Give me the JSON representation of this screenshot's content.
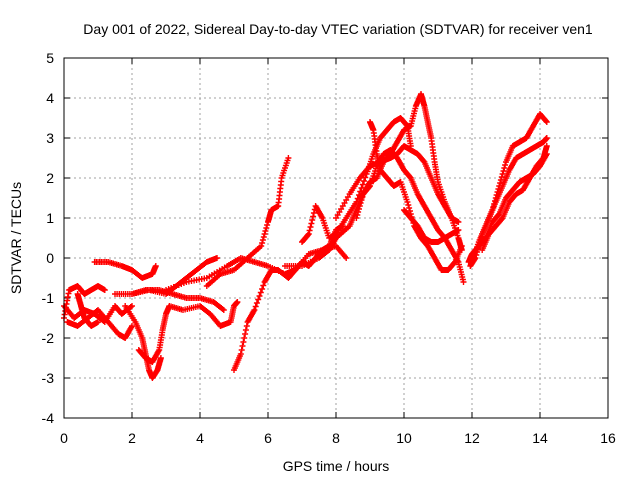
{
  "chart_data": {
    "type": "scatter",
    "title": "Day 001 of 2022, Sidereal Day-to-day VTEC variation (SDTVAR) for receiver ven1",
    "xlabel": "GPS time / hours",
    "ylabel": "SDTVAR / TECUs",
    "xlim": [
      0,
      16
    ],
    "ylim": [
      -4,
      5
    ],
    "xticks": [
      "0",
      "2",
      "4",
      "6",
      "8",
      "10",
      "12",
      "14",
      "16"
    ],
    "yticks": [
      "-4",
      "-3",
      "-2",
      "-1",
      "0",
      "1",
      "2",
      "3",
      "4",
      "5"
    ],
    "grid": true,
    "marker": "+",
    "color": "#ff0000",
    "tracks": [
      [
        [
          0.0,
          -1.5
        ],
        [
          0.15,
          -0.8
        ],
        [
          0.4,
          -0.7
        ],
        [
          0.6,
          -0.9
        ],
        [
          0.8,
          -0.8
        ],
        [
          1.0,
          -0.7
        ],
        [
          1.2,
          -0.8
        ]
      ],
      [
        [
          0.0,
          -1.2
        ],
        [
          0.3,
          -1.5
        ],
        [
          0.6,
          -1.3
        ],
        [
          0.9,
          -1.4
        ],
        [
          1.2,
          -1.6
        ],
        [
          1.5,
          -1.2
        ],
        [
          1.7,
          -1.4
        ],
        [
          2.0,
          -1.2
        ]
      ],
      [
        [
          0.1,
          -1.6
        ],
        [
          0.4,
          -1.7
        ],
        [
          0.7,
          -1.5
        ],
        [
          1.0,
          -1.3
        ],
        [
          1.3,
          -1.6
        ],
        [
          1.6,
          -1.9
        ],
        [
          1.8,
          -2.0
        ],
        [
          2.0,
          -1.7
        ]
      ],
      [
        [
          0.4,
          -0.9
        ],
        [
          0.5,
          -1.2
        ],
        [
          0.6,
          -1.5
        ],
        [
          0.8,
          -1.7
        ],
        [
          1.0,
          -1.6
        ]
      ],
      [
        [
          0.9,
          -0.1
        ],
        [
          1.3,
          -0.1
        ],
        [
          1.7,
          -0.2
        ],
        [
          2.0,
          -0.3
        ],
        [
          2.3,
          -0.5
        ],
        [
          2.6,
          -0.4
        ],
        [
          2.7,
          -0.2
        ]
      ],
      [
        [
          1.5,
          -0.9
        ],
        [
          2.0,
          -0.9
        ],
        [
          2.5,
          -0.8
        ],
        [
          3.0,
          -0.9
        ],
        [
          3.3,
          -0.7
        ],
        [
          3.6,
          -0.5
        ],
        [
          3.9,
          -0.3
        ],
        [
          4.2,
          -0.1
        ],
        [
          4.5,
          0.0
        ]
      ],
      [
        [
          1.8,
          -1.2
        ],
        [
          2.1,
          -1.6
        ],
        [
          2.3,
          -2.0
        ],
        [
          2.4,
          -2.4
        ],
        [
          2.5,
          -2.8
        ],
        [
          2.6,
          -3.0
        ],
        [
          2.75,
          -2.8
        ],
        [
          2.85,
          -2.5
        ]
      ],
      [
        [
          2.2,
          -2.3
        ],
        [
          2.4,
          -2.5
        ],
        [
          2.6,
          -2.6
        ],
        [
          2.8,
          -2.3
        ],
        [
          2.9,
          -1.8
        ],
        [
          3.0,
          -1.4
        ],
        [
          3.1,
          -1.2
        ],
        [
          3.5,
          -1.3
        ],
        [
          4.0,
          -1.2
        ],
        [
          4.3,
          -1.4
        ],
        [
          4.6,
          -1.7
        ],
        [
          4.9,
          -1.6
        ],
        [
          5.0,
          -1.2
        ],
        [
          5.1,
          -1.1
        ]
      ],
      [
        [
          2.0,
          -0.9
        ],
        [
          2.4,
          -0.8
        ],
        [
          2.8,
          -0.8
        ],
        [
          3.2,
          -0.9
        ],
        [
          3.6,
          -1.0
        ],
        [
          4.0,
          -1.0
        ],
        [
          4.4,
          -1.1
        ],
        [
          4.7,
          -1.3
        ]
      ],
      [
        [
          5.0,
          -2.8
        ],
        [
          5.2,
          -2.4
        ],
        [
          5.4,
          -1.6
        ],
        [
          5.6,
          -1.3
        ],
        [
          5.9,
          -0.6
        ],
        [
          6.1,
          -0.3
        ],
        [
          6.3,
          -0.3
        ],
        [
          6.6,
          -0.5
        ],
        [
          6.8,
          -0.3
        ],
        [
          7.0,
          -0.1
        ],
        [
          7.2,
          -0.2
        ],
        [
          7.4,
          0.0
        ],
        [
          7.6,
          0.2
        ],
        [
          7.8,
          0.3
        ],
        [
          8.0,
          0.7
        ],
        [
          8.2,
          0.8
        ]
      ],
      [
        [
          4.2,
          -0.7
        ],
        [
          4.6,
          -0.4
        ],
        [
          5.0,
          -0.3
        ],
        [
          5.4,
          0.0
        ],
        [
          5.8,
          0.3
        ],
        [
          6.0,
          0.9
        ],
        [
          6.1,
          1.2
        ],
        [
          6.3,
          1.3
        ],
        [
          6.4,
          2.0
        ],
        [
          6.6,
          2.5
        ]
      ],
      [
        [
          3.0,
          -0.8
        ],
        [
          3.6,
          -0.6
        ],
        [
          4.2,
          -0.5
        ],
        [
          4.8,
          -0.2
        ],
        [
          5.2,
          0.0
        ],
        [
          5.6,
          -0.1
        ],
        [
          6.0,
          -0.2
        ],
        [
          6.5,
          -0.4
        ],
        [
          6.8,
          -0.3
        ],
        [
          7.2,
          0.1
        ],
        [
          7.6,
          0.2
        ],
        [
          8.0,
          0.3
        ],
        [
          8.3,
          0.0
        ]
      ],
      [
        [
          6.5,
          -0.2
        ],
        [
          7.0,
          -0.2
        ],
        [
          7.5,
          0.0
        ],
        [
          7.8,
          0.2
        ],
        [
          8.0,
          0.5
        ],
        [
          8.4,
          0.8
        ],
        [
          8.6,
          1.2
        ],
        [
          8.8,
          1.6
        ],
        [
          9.0,
          1.8
        ],
        [
          9.2,
          2.3
        ],
        [
          9.4,
          2.6
        ],
        [
          9.6,
          2.7
        ],
        [
          9.8,
          2.5
        ],
        [
          10.0,
          2.2
        ],
        [
          10.2,
          2.0
        ],
        [
          10.4,
          1.6
        ],
        [
          10.6,
          1.3
        ],
        [
          10.8,
          1.0
        ],
        [
          11.0,
          0.7
        ],
        [
          11.2,
          0.5
        ],
        [
          11.4,
          0.2
        ],
        [
          11.6,
          -0.1
        ],
        [
          11.75,
          -0.6
        ]
      ],
      [
        [
          7.0,
          0.4
        ],
        [
          7.2,
          0.6
        ],
        [
          7.4,
          1.3
        ],
        [
          7.6,
          1.0
        ],
        [
          7.8,
          0.5
        ],
        [
          8.0,
          0.6
        ],
        [
          8.3,
          1.0
        ],
        [
          8.6,
          1.4
        ],
        [
          8.9,
          2.1
        ],
        [
          9.1,
          2.6
        ],
        [
          9.3,
          3.0
        ],
        [
          9.5,
          3.2
        ],
        [
          9.7,
          3.4
        ],
        [
          9.9,
          3.5
        ],
        [
          10.1,
          3.3
        ],
        [
          10.2,
          2.8
        ]
      ],
      [
        [
          8.0,
          1.0
        ],
        [
          8.4,
          1.6
        ],
        [
          8.7,
          2.0
        ],
        [
          9.0,
          2.3
        ],
        [
          9.3,
          2.4
        ],
        [
          9.6,
          2.5
        ],
        [
          9.8,
          2.6
        ],
        [
          10.0,
          2.8
        ],
        [
          10.2,
          2.7
        ],
        [
          10.4,
          2.6
        ],
        [
          10.6,
          2.4
        ],
        [
          10.8,
          2.0
        ],
        [
          11.0,
          1.6
        ],
        [
          11.2,
          1.3
        ],
        [
          11.4,
          1.0
        ],
        [
          11.6,
          0.9
        ]
      ],
      [
        [
          8.6,
          1.0
        ],
        [
          8.8,
          1.6
        ],
        [
          9.0,
          1.9
        ],
        [
          9.2,
          2.0
        ],
        [
          9.4,
          2.4
        ],
        [
          9.6,
          2.6
        ],
        [
          9.8,
          2.9
        ],
        [
          10.0,
          3.2
        ],
        [
          10.2,
          3.3
        ],
        [
          10.35,
          3.8
        ],
        [
          10.5,
          4.1
        ],
        [
          10.6,
          3.8
        ],
        [
          10.7,
          3.4
        ],
        [
          10.8,
          3.0
        ],
        [
          10.9,
          2.4
        ],
        [
          11.0,
          1.9
        ],
        [
          11.2,
          1.4
        ],
        [
          11.4,
          1.0
        ],
        [
          11.6,
          0.5
        ],
        [
          11.7,
          0.2
        ]
      ],
      [
        [
          9.0,
          3.4
        ],
        [
          9.1,
          3.2
        ],
        [
          9.2,
          2.6
        ],
        [
          9.3,
          2.2
        ],
        [
          9.5,
          2.0
        ],
        [
          9.7,
          1.8
        ],
        [
          9.9,
          1.9
        ],
        [
          10.1,
          1.4
        ],
        [
          10.3,
          0.8
        ],
        [
          10.5,
          0.5
        ],
        [
          10.7,
          0.3
        ],
        [
          10.9,
          0.0
        ],
        [
          11.1,
          -0.3
        ],
        [
          11.3,
          -0.3
        ],
        [
          11.5,
          -0.1
        ],
        [
          11.7,
          0.3
        ]
      ],
      [
        [
          10.0,
          1.2
        ],
        [
          10.2,
          1.0
        ],
        [
          10.4,
          0.8
        ],
        [
          10.6,
          0.5
        ],
        [
          10.8,
          0.4
        ],
        [
          11.0,
          0.4
        ],
        [
          11.2,
          0.5
        ],
        [
          11.4,
          0.6
        ],
        [
          11.6,
          0.7
        ]
      ],
      [
        [
          11.9,
          -0.1
        ],
        [
          12.0,
          0.1
        ],
        [
          12.2,
          0.3
        ],
        [
          12.4,
          0.5
        ],
        [
          12.6,
          0.9
        ],
        [
          12.8,
          1.1
        ],
        [
          13.0,
          1.5
        ],
        [
          13.2,
          1.7
        ],
        [
          13.4,
          1.9
        ],
        [
          13.6,
          2.0
        ],
        [
          13.8,
          2.1
        ],
        [
          14.0,
          2.3
        ],
        [
          14.2,
          2.6
        ]
      ],
      [
        [
          11.95,
          -0.2
        ],
        [
          12.1,
          0.0
        ],
        [
          12.3,
          0.6
        ],
        [
          12.5,
          1.0
        ],
        [
          12.7,
          1.4
        ],
        [
          12.9,
          1.8
        ],
        [
          13.1,
          2.2
        ],
        [
          13.3,
          2.5
        ],
        [
          13.5,
          2.6
        ],
        [
          13.7,
          2.7
        ],
        [
          13.9,
          2.8
        ],
        [
          14.1,
          2.9
        ],
        [
          14.2,
          3.0
        ]
      ],
      [
        [
          12.0,
          -0.1
        ],
        [
          12.2,
          0.4
        ],
        [
          12.4,
          0.8
        ],
        [
          12.6,
          1.2
        ],
        [
          12.8,
          1.8
        ],
        [
          13.0,
          2.4
        ],
        [
          13.2,
          2.8
        ],
        [
          13.4,
          2.9
        ],
        [
          13.6,
          3.0
        ],
        [
          13.8,
          3.3
        ],
        [
          14.0,
          3.6
        ],
        [
          14.2,
          3.4
        ]
      ],
      [
        [
          12.3,
          0.2
        ],
        [
          12.5,
          0.6
        ],
        [
          12.7,
          0.8
        ],
        [
          12.9,
          1.0
        ],
        [
          13.1,
          1.4
        ],
        [
          13.3,
          1.6
        ],
        [
          13.5,
          1.7
        ],
        [
          13.7,
          2.0
        ],
        [
          13.9,
          2.3
        ],
        [
          14.1,
          2.5
        ],
        [
          14.2,
          2.8
        ]
      ]
    ]
  }
}
